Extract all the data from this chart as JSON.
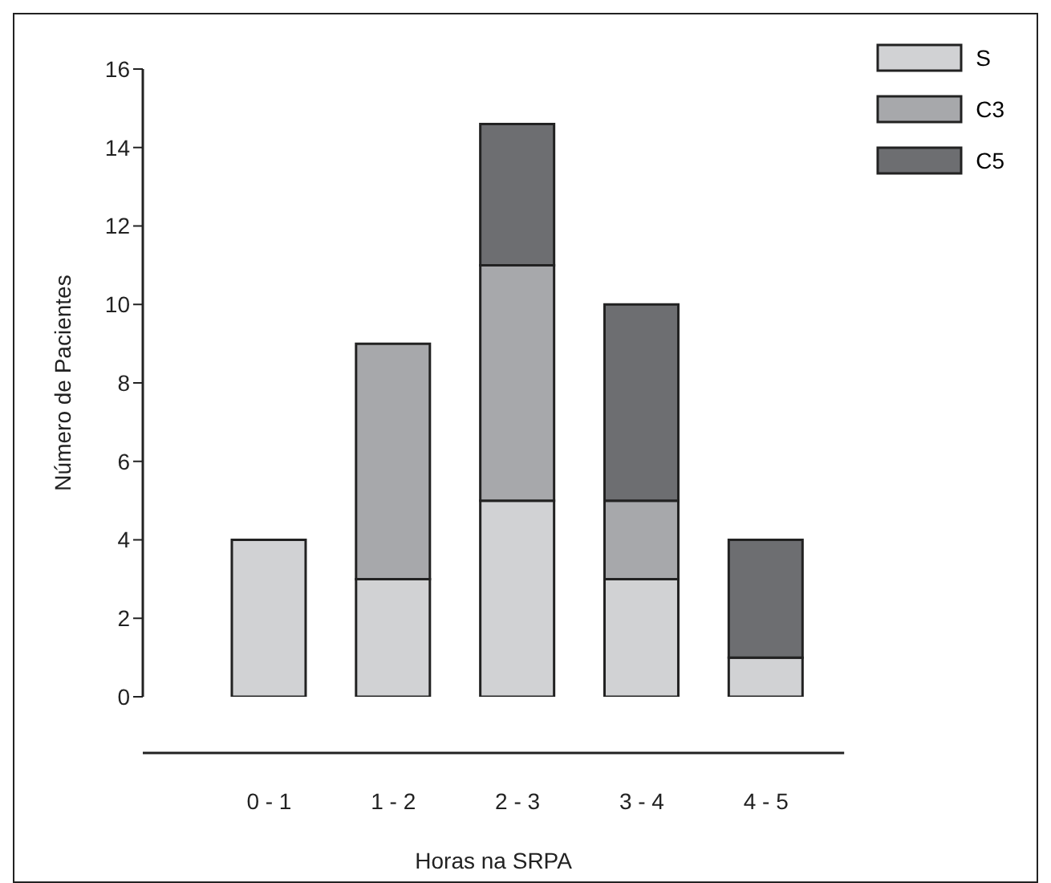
{
  "chart_data": {
    "type": "bar",
    "stacked": true,
    "xlabel": "Horas na SRPA",
    "ylabel": "Número de Pacientes",
    "categories": [
      "0 - 1",
      "1 - 2",
      "2 - 3",
      "3 - 4",
      "4 - 5"
    ],
    "series": [
      {
        "name": "S",
        "color": "#d1d2d4",
        "values": [
          4,
          3,
          5,
          3,
          1
        ]
      },
      {
        "name": "C3",
        "color": "#a7a8ab",
        "values": [
          0,
          6,
          6,
          2,
          0
        ]
      },
      {
        "name": "C5",
        "color": "#6d6e71",
        "values": [
          0,
          0,
          3.6,
          5,
          3
        ]
      }
    ],
    "ylim": [
      0,
      16
    ],
    "yticks": [
      0,
      2,
      4,
      6,
      8,
      10,
      12,
      14,
      16
    ],
    "grid": false,
    "legend": "top right"
  }
}
